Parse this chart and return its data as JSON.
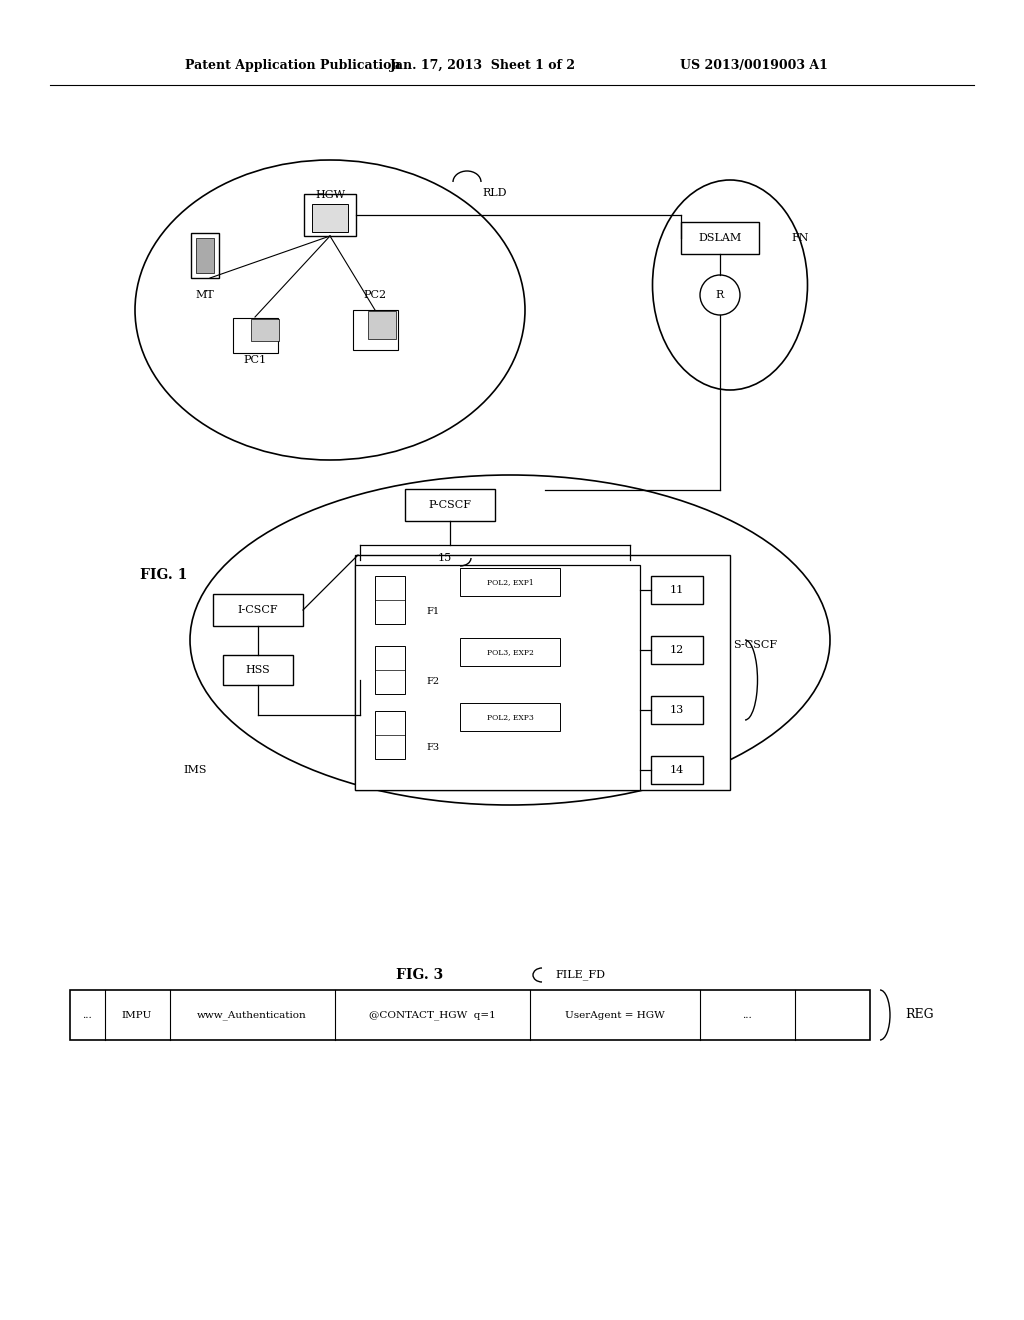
{
  "background_color": "#ffffff",
  "header_text": "Patent Application Publication",
  "header_date": "Jan. 17, 2013  Sheet 1 of 2",
  "header_patent": "US 2013/0019003 A1",
  "fig1_label": "FIG. 1",
  "fig3_label": "FIG. 3",
  "fig3_subtitle": "FILE_FD",
  "reg_label": "REG",
  "table_cells": [
    "...",
    "IMPU",
    "www_Authentication",
    "@CONTACT_HGW  q=1",
    "UserAgent = HGW",
    "..."
  ]
}
